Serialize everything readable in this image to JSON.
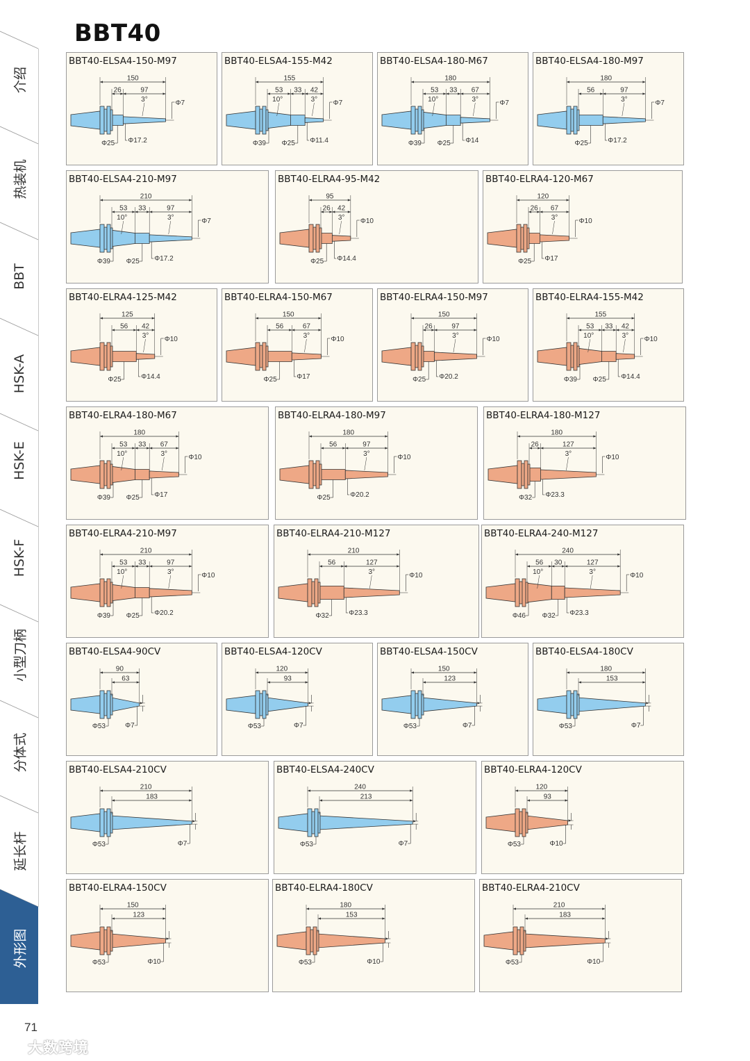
{
  "page": {
    "title": "BBT40",
    "page_number": "71",
    "watermark": "大数跨境"
  },
  "sidebar": {
    "active_color": "#2d5f94",
    "tabs": [
      {
        "label": "介绍"
      },
      {
        "label": "热装机"
      },
      {
        "label": "BBT"
      },
      {
        "label": "HSK-A"
      },
      {
        "label": "HSK-E"
      },
      {
        "label": "HSK-F"
      },
      {
        "label": "小型刀柄"
      },
      {
        "label": "分体式"
      },
      {
        "label": "延长杆"
      },
      {
        "label": "外形图",
        "active": true
      }
    ]
  },
  "colors": {
    "blue": "#93cdee",
    "orange": "#eea886",
    "card_bg": "#fcf9ef"
  },
  "cards": [
    {
      "title": "BBT40-ELSA4-150-M97",
      "color": "blue",
      "type": "step",
      "total": "150",
      "segs": [
        "26",
        "97"
      ],
      "angles": [
        "3°"
      ],
      "dias": [
        "Φ25",
        "Φ17.2"
      ],
      "tip": "Φ7"
    },
    {
      "title": "BBT40-ELSA4-155-M42",
      "color": "blue",
      "type": "step",
      "total": "155",
      "segs": [
        "53",
        "33",
        "42"
      ],
      "angles": [
        "10°",
        "3°"
      ],
      "dias": [
        "Φ39",
        "Φ25",
        "Φ11.4"
      ],
      "tip": "Φ7"
    },
    {
      "title": "BBT40-ELSA4-180-M67",
      "color": "blue",
      "type": "step",
      "total": "180",
      "segs": [
        "53",
        "33",
        "67"
      ],
      "angles": [
        "10°",
        "3°"
      ],
      "dias": [
        "Φ39",
        "Φ25",
        "Φ14"
      ],
      "tip": "Φ7"
    },
    {
      "title": "BBT40-ELSA4-180-M97",
      "color": "blue",
      "type": "step",
      "total": "180",
      "segs": [
        "56",
        "97"
      ],
      "angles": [
        "3°"
      ],
      "dias": [
        "Φ25",
        "Φ17.2"
      ],
      "tip": "Φ7"
    },
    {
      "title": "BBT40-ELSA4-210-M97",
      "color": "blue",
      "type": "step",
      "total": "210",
      "segs": [
        "53",
        "33",
        "97"
      ],
      "angles": [
        "10°",
        "3°"
      ],
      "dias": [
        "Φ39",
        "Φ25",
        "Φ17.2"
      ],
      "tip": "Φ7"
    },
    {
      "title": "BBT40-ELRA4-95-M42",
      "color": "orange",
      "type": "step",
      "total": "95",
      "segs": [
        "26",
        "42"
      ],
      "angles": [
        "3°"
      ],
      "dias": [
        "Φ25",
        "Φ14.4"
      ],
      "tip": "Φ10"
    },
    {
      "title": "BBT40-ELRA4-120-M67",
      "color": "orange",
      "type": "step",
      "total": "120",
      "segs": [
        "26",
        "67"
      ],
      "angles": [
        "3°"
      ],
      "dias": [
        "Φ25",
        "Φ17"
      ],
      "tip": "Φ10"
    },
    {
      "title": "BBT40-ELRA4-125-M42",
      "color": "orange",
      "type": "step",
      "total": "125",
      "segs": [
        "56",
        "42"
      ],
      "angles": [
        "3°"
      ],
      "dias": [
        "Φ25",
        "Φ14.4"
      ],
      "tip": "Φ10"
    },
    {
      "title": "BBT40-ELRA4-150-M67",
      "color": "orange",
      "type": "step",
      "total": "150",
      "segs": [
        "56",
        "67"
      ],
      "angles": [
        "3°"
      ],
      "dias": [
        "Φ25",
        "Φ17"
      ],
      "tip": "Φ10"
    },
    {
      "title": "BBT40-ELRA4-150-M97",
      "color": "orange",
      "type": "step",
      "total": "150",
      "segs": [
        "26",
        "97"
      ],
      "angles": [
        "3°"
      ],
      "dias": [
        "Φ25",
        "Φ20.2"
      ],
      "tip": "Φ10"
    },
    {
      "title": "BBT40-ELRA4-155-M42",
      "color": "orange",
      "type": "step",
      "total": "155",
      "segs": [
        "53",
        "33",
        "42"
      ],
      "angles": [
        "10°",
        "3°"
      ],
      "dias": [
        "Φ39",
        "Φ25",
        "Φ14.4"
      ],
      "tip": "Φ10"
    },
    {
      "title": "BBT40-ELRA4-180-M67",
      "color": "orange",
      "type": "step",
      "total": "180",
      "segs": [
        "53",
        "33",
        "67"
      ],
      "angles": [
        "10°",
        "3°"
      ],
      "dias": [
        "Φ39",
        "Φ25",
        "Φ17"
      ],
      "tip": "Φ10"
    },
    {
      "title": "BBT40-ELRA4-180-M97",
      "color": "orange",
      "type": "step",
      "total": "180",
      "segs": [
        "56",
        "97"
      ],
      "angles": [
        "3°"
      ],
      "dias": [
        "Φ25",
        "Φ20.2"
      ],
      "tip": "Φ10"
    },
    {
      "title": "BBT40-ELRA4-180-M127",
      "color": "orange",
      "type": "step",
      "total": "180",
      "segs": [
        "26",
        "127"
      ],
      "angles": [
        "3°"
      ],
      "dias": [
        "Φ32",
        "Φ23.3"
      ],
      "tip": "Φ10"
    },
    {
      "title": "BBT40-ELRA4-210-M97",
      "color": "orange",
      "type": "step",
      "total": "210",
      "segs": [
        "53",
        "33",
        "97"
      ],
      "angles": [
        "10°",
        "3°"
      ],
      "dias": [
        "Φ39",
        "Φ25",
        "Φ20.2"
      ],
      "tip": "Φ10"
    },
    {
      "title": "BBT40-ELRA4-210-M127",
      "color": "orange",
      "type": "step",
      "total": "210",
      "segs": [
        "56",
        "127"
      ],
      "angles": [
        "3°"
      ],
      "dias": [
        "Φ32",
        "Φ23.3"
      ],
      "tip": "Φ10"
    },
    {
      "title": "BBT40-ELRA4-240-M127",
      "color": "orange",
      "type": "step",
      "total": "240",
      "segs": [
        "56",
        "30",
        "127"
      ],
      "angles": [
        "10°",
        "3°"
      ],
      "dias": [
        "Φ46",
        "Φ32",
        "Φ23.3"
      ],
      "tip": "Φ10"
    },
    {
      "title": "BBT40-ELSA4-90CV",
      "color": "blue",
      "type": "cv",
      "total": "90",
      "segs": [
        "63"
      ],
      "dias": [
        "Φ53"
      ],
      "tip": "Φ7"
    },
    {
      "title": "BBT40-ELSA4-120CV",
      "color": "blue",
      "type": "cv",
      "total": "120",
      "segs": [
        "93"
      ],
      "dias": [
        "Φ53"
      ],
      "tip": "Φ7"
    },
    {
      "title": "BBT40-ELSA4-150CV",
      "color": "blue",
      "type": "cv",
      "total": "150",
      "segs": [
        "123"
      ],
      "dias": [
        "Φ53"
      ],
      "tip": "Φ7"
    },
    {
      "title": "BBT40-ELSA4-180CV",
      "color": "blue",
      "type": "cv",
      "total": "180",
      "segs": [
        "153"
      ],
      "dias": [
        "Φ53"
      ],
      "tip": "Φ7"
    },
    {
      "title": "BBT40-ELSA4-210CV",
      "color": "blue",
      "type": "cv",
      "total": "210",
      "segs": [
        "183"
      ],
      "dias": [
        "Φ53"
      ],
      "tip": "Φ7"
    },
    {
      "title": "BBT40-ELSA4-240CV",
      "color": "blue",
      "type": "cv",
      "total": "240",
      "segs": [
        "213"
      ],
      "dias": [
        "Φ53"
      ],
      "tip": "Φ7"
    },
    {
      "title": "BBT40-ELRA4-120CV",
      "color": "orange",
      "type": "cv",
      "total": "120",
      "segs": [
        "93"
      ],
      "dias": [
        "Φ53"
      ],
      "tip": "Φ10"
    },
    {
      "title": "BBT40-ELRA4-150CV",
      "color": "orange",
      "type": "cv",
      "total": "150",
      "segs": [
        "123"
      ],
      "dias": [
        "Φ53"
      ],
      "tip": "Φ10"
    },
    {
      "title": "BBT40-ELRA4-180CV",
      "color": "orange",
      "type": "cv",
      "total": "180",
      "segs": [
        "153"
      ],
      "dias": [
        "Φ53"
      ],
      "tip": "Φ10"
    },
    {
      "title": "BBT40-ELRA4-210CV",
      "color": "orange",
      "type": "cv",
      "total": "210",
      "segs": [
        "183"
      ],
      "dias": [
        "Φ53"
      ],
      "tip": "Φ10"
    }
  ]
}
